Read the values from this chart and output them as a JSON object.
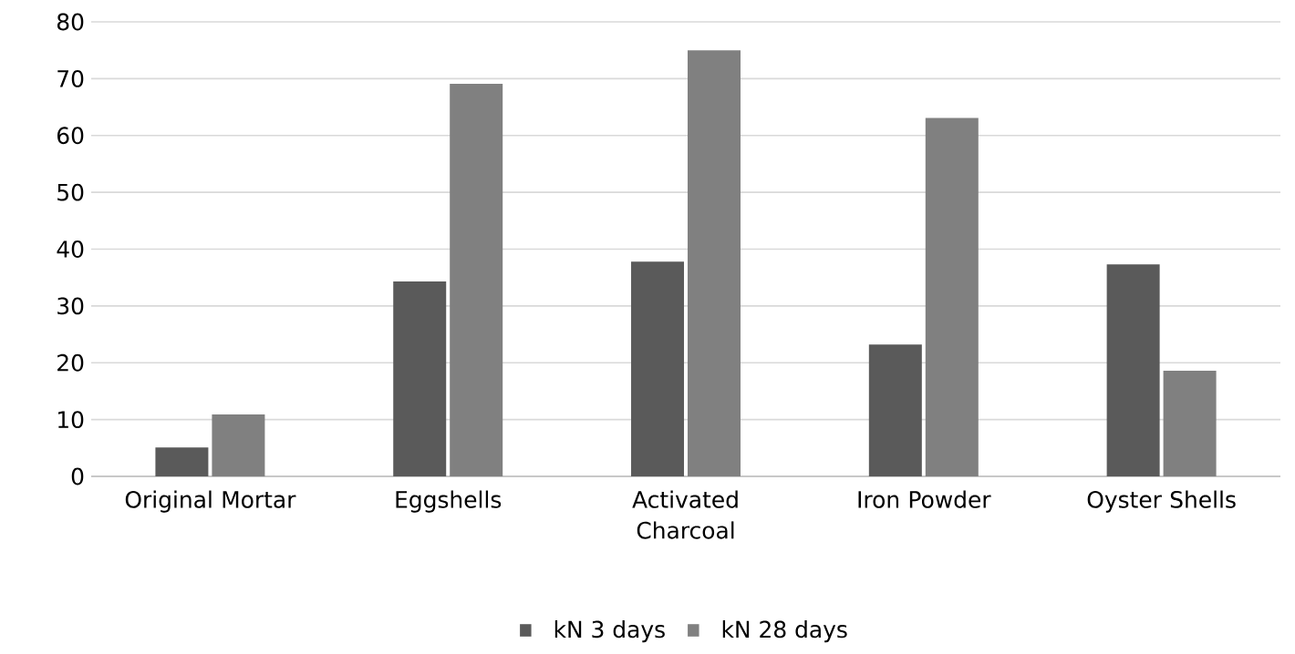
{
  "chart_data": {
    "type": "bar",
    "categories": [
      "Original Mortar",
      "Eggshells",
      "Activated Charcoal",
      "Iron Powder",
      "Oyster Shells"
    ],
    "series": [
      {
        "name": "kN 3 days",
        "color": "#5a5a5a",
        "values": [
          5.1,
          34.3,
          37.8,
          23.2,
          37.3
        ]
      },
      {
        "name": "kN 28 days",
        "color": "#808080",
        "values": [
          10.9,
          69.1,
          75,
          63.1,
          18.6
        ]
      }
    ],
    "ylim": [
      0,
      80
    ],
    "yticks": [
      0,
      10,
      20,
      30,
      40,
      50,
      60,
      70,
      80
    ],
    "grid": "y",
    "legend": "bottom"
  }
}
